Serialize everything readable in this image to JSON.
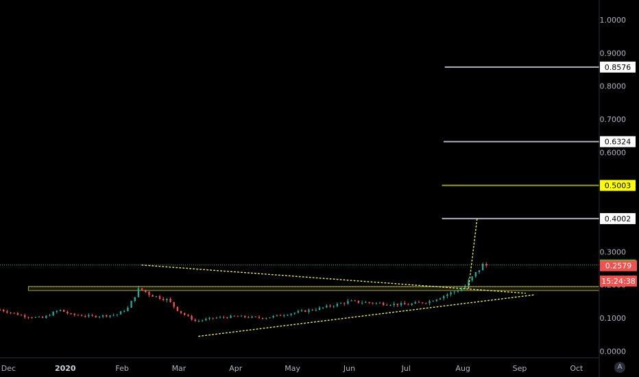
{
  "chart_data": {
    "type": "candlestick",
    "y_axis": {
      "range": [
        -0.02,
        1.06
      ],
      "ticks": [
        "1.0000",
        "0.9000",
        "0.8000",
        "0.7000",
        "0.6000",
        "0.5000",
        "0.4000",
        "0.3000",
        "0.2000",
        "0.1000",
        "0.0000"
      ],
      "position": "right"
    },
    "x_axis": {
      "labels": [
        {
          "text": "Dec",
          "x": 0
        },
        {
          "text": "2020",
          "x": 1,
          "bold": true
        },
        {
          "text": "Feb",
          "x": 2
        },
        {
          "text": "Mar",
          "x": 3
        },
        {
          "text": "Apr",
          "x": 4
        },
        {
          "text": "May",
          "x": 5
        },
        {
          "text": "Jun",
          "x": 6
        },
        {
          "text": "Jul",
          "x": 7
        },
        {
          "text": "Aug",
          "x": 8
        },
        {
          "text": "Sep",
          "x": 9
        },
        {
          "text": "Oct",
          "x": 10
        }
      ],
      "range": [
        -0.15,
        10.4
      ]
    },
    "price_path": [
      [
        -0.15,
        0.125
      ],
      [
        0.3,
        0.105
      ],
      [
        0.6,
        0.1
      ],
      [
        0.9,
        0.125
      ],
      [
        1.1,
        0.11
      ],
      [
        1.5,
        0.105
      ],
      [
        1.9,
        0.11
      ],
      [
        2.1,
        0.13
      ],
      [
        2.3,
        0.19
      ],
      [
        2.5,
        0.17
      ],
      [
        2.8,
        0.155
      ],
      [
        3.0,
        0.12
      ],
      [
        3.3,
        0.09
      ],
      [
        3.6,
        0.1
      ],
      [
        4.0,
        0.105
      ],
      [
        4.5,
        0.1
      ],
      [
        5.0,
        0.115
      ],
      [
        5.5,
        0.13
      ],
      [
        6.0,
        0.15
      ],
      [
        6.5,
        0.145
      ],
      [
        7.0,
        0.14
      ],
      [
        7.4,
        0.15
      ],
      [
        7.7,
        0.17
      ],
      [
        8.0,
        0.19
      ],
      [
        8.2,
        0.23
      ],
      [
        8.35,
        0.26
      ],
      [
        8.45,
        0.2579
      ]
    ],
    "horizontal_levels": [
      {
        "value": 0.8576,
        "label": "0.8576",
        "color": "#b2b5be",
        "tag_bg": "#ffffff",
        "tag_fg": "#000000",
        "x_start": 7.68
      },
      {
        "value": 0.6324,
        "label": "0.6324",
        "color": "#b2b5be",
        "tag_bg": "#ffffff",
        "tag_fg": "#000000",
        "x_start": 7.66
      },
      {
        "value": 0.5003,
        "label": "0.5003",
        "color": "#9aa51c",
        "tag_bg": "#ffff00",
        "tag_fg": "#000000",
        "x_start": 7.63
      },
      {
        "value": 0.4002,
        "label": "0.4002",
        "color": "#b2b5be",
        "tag_bg": "#ffffff",
        "tag_fg": "#000000",
        "x_start": 7.63
      },
      {
        "value": 0.26,
        "label": "0.2600",
        "color": "#4caf50",
        "tag_bg": "#00ff00",
        "tag_fg": "#000000",
        "x_start": -0.15,
        "dotted": true
      }
    ],
    "zone": {
      "low": 0.183,
      "high": 0.195,
      "x_start": 0.35,
      "color": "#c8c84a"
    },
    "trendlines": [
      {
        "from": [
          2.35,
          0.26
        ],
        "to": [
          9.1,
          0.175
        ],
        "color": "#e8e85a"
      },
      {
        "from": [
          3.35,
          0.045
        ],
        "to": [
          9.25,
          0.17
        ],
        "color": "#e8e85a"
      },
      {
        "from": [
          8.1,
          0.19
        ],
        "to": [
          8.25,
          0.4
        ],
        "color": "#e8e85a"
      }
    ],
    "price_tags": [
      {
        "value": 0.2579,
        "label": "0.2579",
        "bg": "#ef5350",
        "fg": "#ffffff"
      },
      {
        "value": 0.2115,
        "label": "15:24:38",
        "bg": "#ef5350",
        "fg": "#ffffff"
      }
    ],
    "colors": {
      "up": "#26a69a",
      "down": "#ef5350",
      "axis_text": "#b2b5be",
      "background": "#000000"
    }
  },
  "ui": {
    "auto_scale_button": "A"
  }
}
